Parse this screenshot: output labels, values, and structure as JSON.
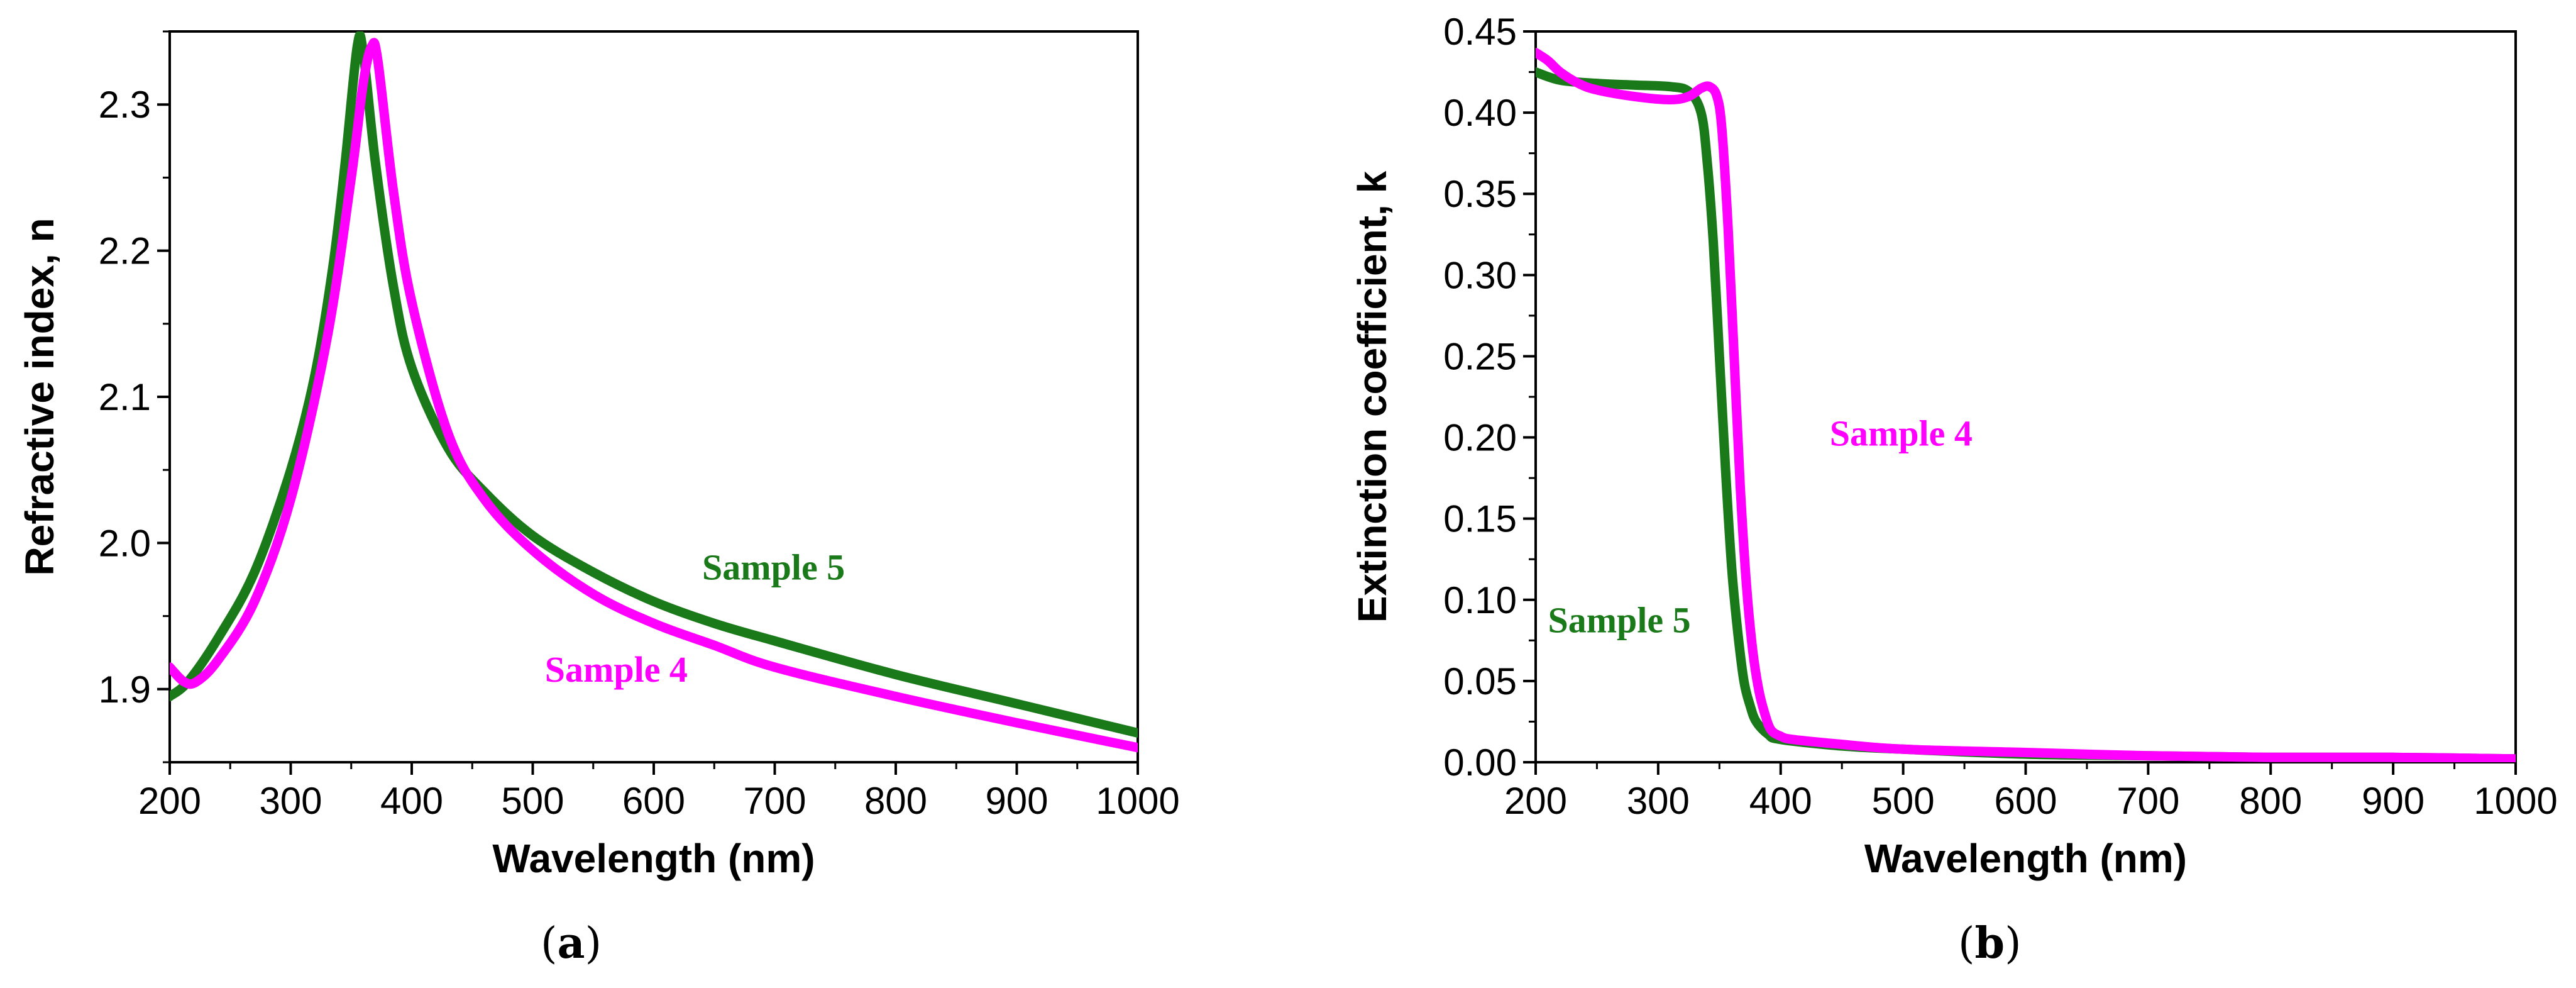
{
  "colors": {
    "sample4": "#ff00ff",
    "sample5": "#1a7a1a",
    "axis": "#000000"
  },
  "chart_data": [
    {
      "panel": "a",
      "caption_open": "(",
      "caption_letter": "a",
      "caption_close": ")",
      "type": "line",
      "title": "",
      "xlabel": "Wavelength (nm)",
      "ylabel": "Refractive index, n",
      "xlim": [
        200,
        1000
      ],
      "ylim": [
        1.85,
        2.35
      ],
      "xticks": [
        200,
        300,
        400,
        500,
        600,
        700,
        800,
        900,
        1000
      ],
      "yticks": [
        1.9,
        2.0,
        2.1,
        2.2,
        2.3
      ],
      "ytick_labels": [
        "1.9",
        "2.0",
        "2.1",
        "2.2",
        "2.3"
      ],
      "grid": false,
      "series": [
        {
          "name": "Sample 5",
          "color": "#1a7a1a",
          "x": [
            200,
            215,
            240,
            270,
            300,
            320,
            335,
            345,
            355,
            360,
            370,
            385,
            400,
            430,
            460,
            500,
            550,
            600,
            650,
            700,
            800,
            900,
            1000
          ],
          "y": [
            1.895,
            1.905,
            1.935,
            1.98,
            2.05,
            2.115,
            2.19,
            2.26,
            2.34,
            2.335,
            2.26,
            2.175,
            2.12,
            2.065,
            2.035,
            2.005,
            1.98,
            1.96,
            1.945,
            1.933,
            1.91,
            1.89,
            1.87
          ]
        },
        {
          "name": "Sample 4",
          "color": "#ff00ff",
          "x": [
            200,
            212,
            222,
            240,
            270,
            300,
            330,
            350,
            360,
            367,
            372,
            385,
            400,
            430,
            460,
            500,
            550,
            600,
            650,
            700,
            800,
            900,
            1000
          ],
          "y": [
            1.915,
            1.905,
            1.905,
            1.92,
            1.96,
            2.03,
            2.14,
            2.25,
            2.315,
            2.34,
            2.33,
            2.24,
            2.165,
            2.075,
            2.03,
            1.995,
            1.965,
            1.945,
            1.93,
            1.915,
            1.895,
            1.877,
            1.86
          ]
        }
      ],
      "annotations": [
        {
          "text": "Sample 5",
          "series": "Sample 5",
          "x": 640,
          "y": 1.975
        },
        {
          "text": "Sample 4",
          "series": "Sample 4",
          "x": 510,
          "y": 1.905
        }
      ]
    },
    {
      "panel": "b",
      "caption_open": "(",
      "caption_letter": "b",
      "caption_close": ")",
      "type": "line",
      "title": "",
      "xlabel": "Wavelength (nm)",
      "ylabel": "Extinction coefficient, k",
      "xlim": [
        200,
        1000
      ],
      "ylim": [
        0.0,
        0.45
      ],
      "xticks": [
        200,
        300,
        400,
        500,
        600,
        700,
        800,
        900,
        1000
      ],
      "yticks": [
        0.0,
        0.05,
        0.1,
        0.15,
        0.2,
        0.25,
        0.3,
        0.35,
        0.4,
        0.45
      ],
      "ytick_labels": [
        "0.00",
        "0.05",
        "0.10",
        "0.15",
        "0.20",
        "0.25",
        "0.30",
        "0.35",
        "0.40",
        "0.45"
      ],
      "grid": false,
      "series": [
        {
          "name": "Sample 5",
          "color": "#1a7a1a",
          "x": [
            200,
            220,
            250,
            280,
            310,
            325,
            335,
            340,
            345,
            350,
            355,
            360,
            365,
            370,
            375,
            380,
            390,
            400,
            450,
            500,
            600,
            700,
            800,
            900,
            1000
          ],
          "y": [
            0.425,
            0.42,
            0.418,
            0.417,
            0.416,
            0.413,
            0.4,
            0.37,
            0.32,
            0.25,
            0.18,
            0.12,
            0.08,
            0.05,
            0.035,
            0.025,
            0.017,
            0.014,
            0.01,
            0.008,
            0.005,
            0.004,
            0.003,
            0.003,
            0.002
          ]
        },
        {
          "name": "Sample 4",
          "color": "#ff00ff",
          "x": [
            200,
            210,
            220,
            235,
            250,
            280,
            310,
            325,
            335,
            342,
            348,
            352,
            357,
            362,
            367,
            372,
            377,
            382,
            387,
            392,
            400,
            410,
            450,
            500,
            600,
            700,
            800,
            900,
            1000
          ],
          "y": [
            0.437,
            0.432,
            0.425,
            0.418,
            0.414,
            0.41,
            0.408,
            0.41,
            0.415,
            0.416,
            0.41,
            0.39,
            0.33,
            0.25,
            0.17,
            0.11,
            0.07,
            0.045,
            0.03,
            0.02,
            0.016,
            0.014,
            0.011,
            0.008,
            0.006,
            0.004,
            0.003,
            0.003,
            0.002
          ]
        }
      ],
      "annotations": [
        {
          "text": "Sample 4",
          "series": "Sample 4",
          "x": 440,
          "y": 0.195
        },
        {
          "text": "Sample 5",
          "series": "Sample 5",
          "x": 210,
          "y": 0.08
        }
      ]
    }
  ]
}
